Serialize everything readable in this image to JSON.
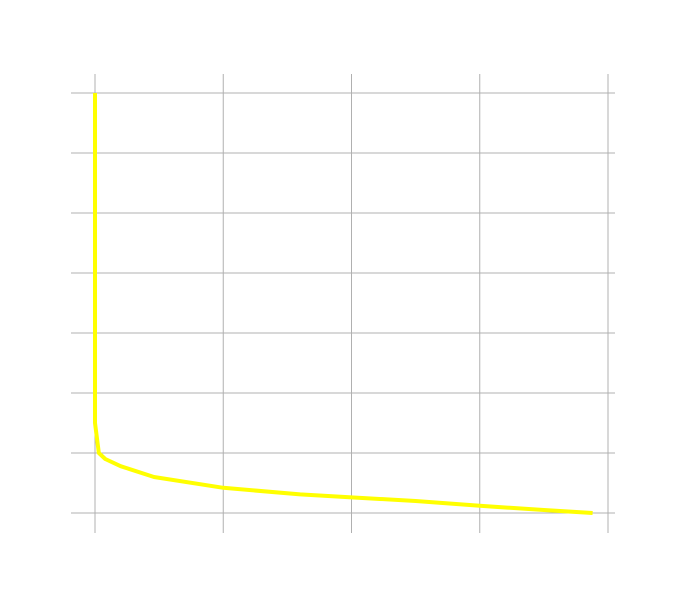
{
  "chart_data": {
    "type": "line",
    "xlim": [
      0,
      4
    ],
    "ylim": [
      0,
      7
    ],
    "x_gridlines": [
      0,
      1,
      2,
      3,
      4
    ],
    "y_gridlines": [
      0,
      1,
      2,
      3,
      4,
      5,
      6,
      7
    ],
    "grid": true,
    "series": [
      {
        "color": "#ffff00",
        "points": [
          [
            0.0,
            7.0
          ],
          [
            0.0,
            6.0
          ],
          [
            0.0,
            5.0
          ],
          [
            0.0,
            4.0
          ],
          [
            0.0,
            3.0
          ],
          [
            0.0,
            2.0
          ],
          [
            0.0,
            1.5
          ],
          [
            0.03,
            1.0
          ],
          [
            0.08,
            0.9
          ],
          [
            0.2,
            0.78
          ],
          [
            0.46,
            0.6
          ],
          [
            1.0,
            0.42
          ],
          [
            1.6,
            0.31
          ],
          [
            2.0,
            0.26
          ],
          [
            2.5,
            0.2
          ],
          [
            3.0,
            0.12
          ],
          [
            3.5,
            0.05
          ],
          [
            3.88,
            0.0
          ]
        ]
      }
    ]
  },
  "style": {
    "grid_color": "#b0b0b0",
    "background": "#ffffff"
  }
}
